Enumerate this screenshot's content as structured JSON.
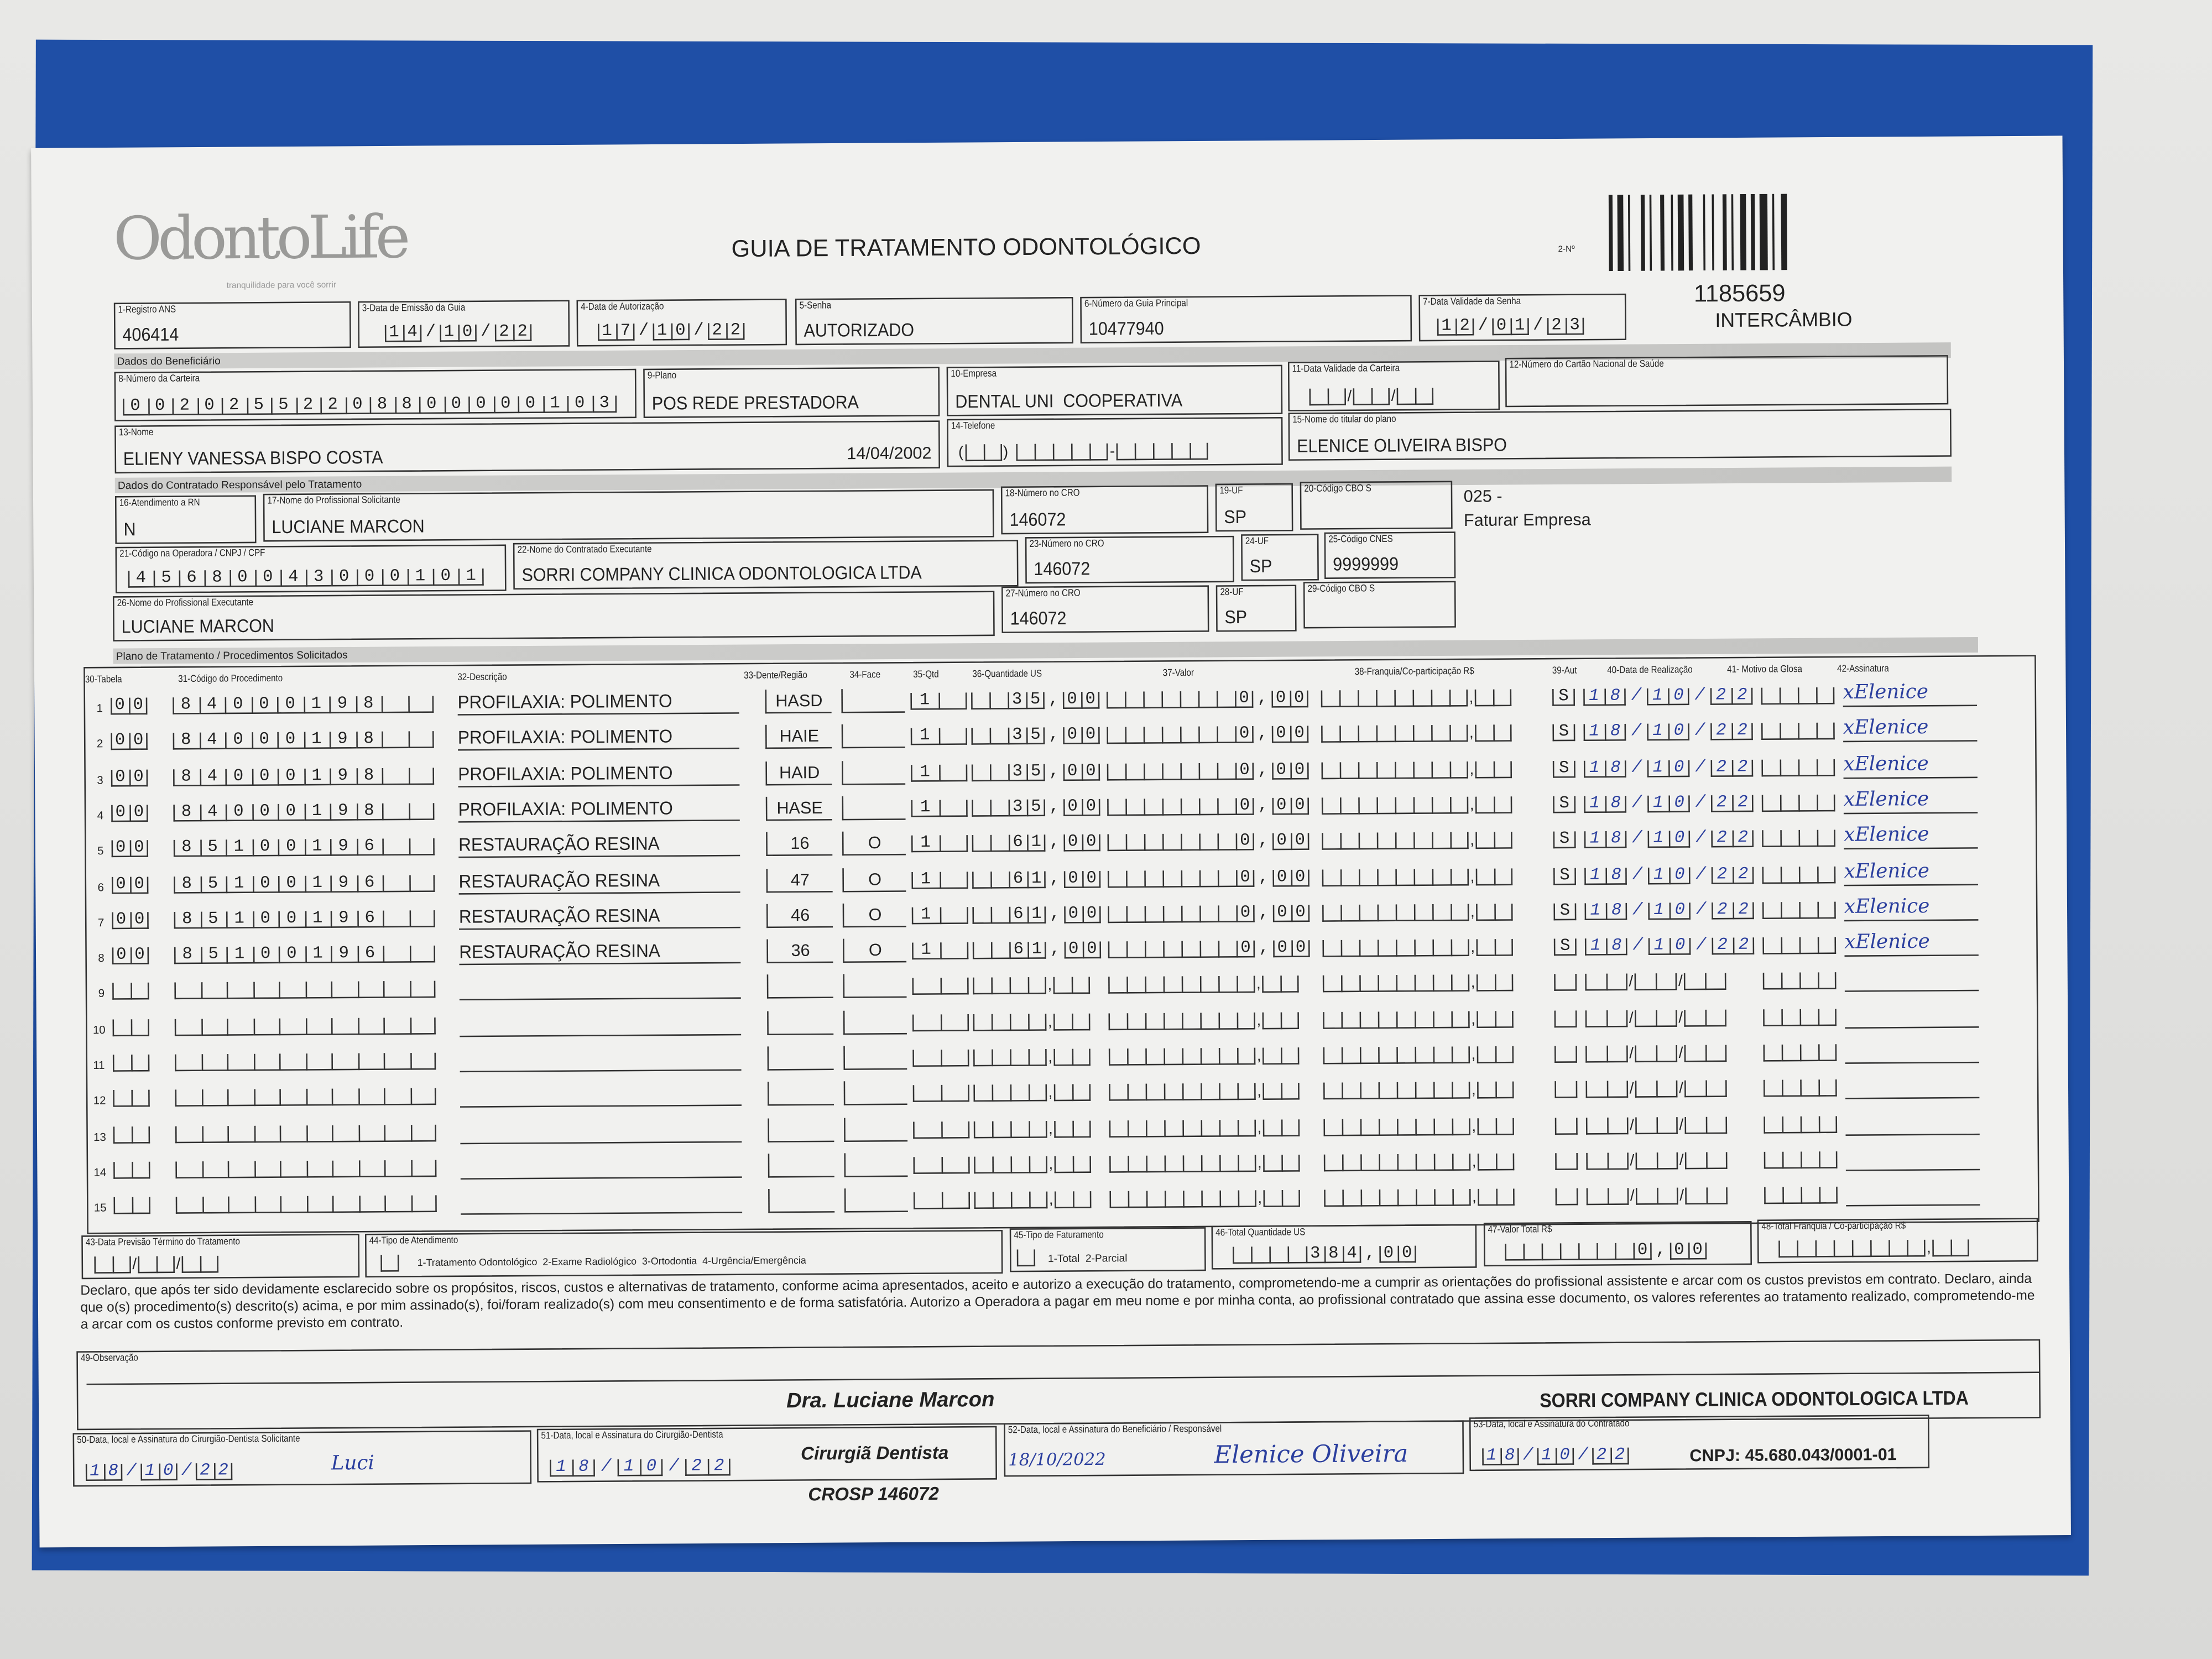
{
  "header": {
    "logo_text": "OdontoLife",
    "logo_tagline": "tranquilidade para você sorrir",
    "title": "GUIA DE TRATAMENTO ODONTOLÓGICO",
    "guia_number_label": "2-Nº",
    "guia_number": "1185659",
    "guia_type": "INTERCÂMBIO"
  },
  "fields": {
    "registro_ans": {
      "label": "1-Registro ANS",
      "value": "406414"
    },
    "data_emissao": {
      "label": "3-Data de Emissão da Guia",
      "value": "14/10/22"
    },
    "data_autorizacao": {
      "label": "4-Data de Autorização",
      "value": "17/10/22"
    },
    "senha": {
      "label": "5-Senha",
      "value": "AUTORIZADO"
    },
    "guia_principal": {
      "label": "6-Número da Guia Principal",
      "value": "10477940"
    },
    "validade_senha": {
      "label": "7-Data Validade da Senha",
      "value": "12/01/23"
    },
    "section_beneficiario": "Dados do Beneficiário",
    "carteira": {
      "label": "8-Número da Carteira",
      "value": "00202552208800000103"
    },
    "plano": {
      "label": "9-Plano",
      "value": "POS REDE PRESTADORA"
    },
    "empresa": {
      "label": "10-Empresa",
      "value": "DENTAL UNI  COOPERATIVA"
    },
    "validade_carteira": {
      "label": "11-Data Validade da Carteira",
      "value": ""
    },
    "cartao_nacional": {
      "label": "12-Número do Cartão Nacional de Saúde",
      "value": ""
    },
    "nome": {
      "label": "13-Nome",
      "value": "ELIENY VANESSA BISPO COSTA",
      "birth_date": "14/04/2002"
    },
    "telefone": {
      "label": "14-Telefone",
      "value": ""
    },
    "titular": {
      "label": "15-Nome do titular do plano",
      "value": "ELENICE OLIVEIRA BISPO"
    },
    "section_contratado": "Dados do Contratado Responsável pelo Tratamento",
    "atendimento_rn": {
      "label": "16-Atendimento a RN",
      "value": "N"
    },
    "profissional_solicitante": {
      "label": "17-Nome do Profissional Solicitante",
      "value": "LUCIANE MARCON"
    },
    "cro_18": {
      "label": "18-Número no CRO",
      "value": "146072"
    },
    "uf_19": {
      "label": "19-UF",
      "value": "SP"
    },
    "cbo_20": {
      "label": "20-Código CBO S",
      "value": ""
    },
    "billing_note_code": "025 -",
    "billing_note": "Faturar Empresa",
    "codigo_operadora": {
      "label": "21-Código na Operadora / CNPJ / CPF",
      "value": "45680043000101"
    },
    "contratado_executante": {
      "label": "22-Nome do Contratado Executante",
      "value": "SORRI COMPANY CLINICA ODONTOLOGICA LTDA"
    },
    "cro_23": {
      "label": "23-Número no CRO",
      "value": "146072"
    },
    "uf_24": {
      "label": "24-UF",
      "value": "SP"
    },
    "cnes": {
      "label": "25-Código CNES",
      "value": "9999999"
    },
    "profissional_executante": {
      "label": "26-Nome do Profissional Executante",
      "value": "LUCIANE MARCON"
    },
    "cro_27": {
      "label": "27-Número no CRO",
      "value": "146072"
    },
    "uf_28": {
      "label": "28-UF",
      "value": "SP"
    },
    "cbo_29": {
      "label": "29-Código CBO S",
      "value": ""
    }
  },
  "procedures": {
    "section_title": "Plano de Tratamento / Procedimentos Solicitados",
    "columns": [
      "30-Tabela",
      "31-Código do Procedimento",
      "32-Descrição",
      "33-Dente/Região",
      "34-Face",
      "35-Qtd",
      "36-Quantidade US",
      "37-Valor",
      "38-Franquia/Co-participação R$",
      "39-Aut",
      "40-Data de Realização",
      "41- Motivo da Glosa",
      "42-Assinatura"
    ],
    "rows": [
      {
        "n": "1",
        "tabela": "00",
        "codigo": "84000198",
        "descricao": "PROFILAXIA: POLIMENTO",
        "dente": "HASD",
        "face": "",
        "qtd": "1",
        "qtd_us": "35,00",
        "valor": "0,00",
        "aut": "S",
        "data": "18/10/22",
        "assinatura": "xElenice"
      },
      {
        "n": "2",
        "tabela": "00",
        "codigo": "84000198",
        "descricao": "PROFILAXIA: POLIMENTO",
        "dente": "HAIE",
        "face": "",
        "qtd": "1",
        "qtd_us": "35,00",
        "valor": "0,00",
        "aut": "S",
        "data": "18/10/22",
        "assinatura": "xElenice"
      },
      {
        "n": "3",
        "tabela": "00",
        "codigo": "84000198",
        "descricao": "PROFILAXIA: POLIMENTO",
        "dente": "HAID",
        "face": "",
        "qtd": "1",
        "qtd_us": "35,00",
        "valor": "0,00",
        "aut": "S",
        "data": "18/10/22",
        "assinatura": "xElenice"
      },
      {
        "n": "4",
        "tabela": "00",
        "codigo": "84000198",
        "descricao": "PROFILAXIA: POLIMENTO",
        "dente": "HASE",
        "face": "",
        "qtd": "1",
        "qtd_us": "35,00",
        "valor": "0,00",
        "aut": "S",
        "data": "18/10/22",
        "assinatura": "xElenice"
      },
      {
        "n": "5",
        "tabela": "00",
        "codigo": "85100196",
        "descricao": "RESTAURAÇÃO RESINA",
        "dente": "16",
        "face": "O",
        "qtd": "1",
        "qtd_us": "61,00",
        "valor": "0,00",
        "aut": "S",
        "data": "18/10/22",
        "assinatura": "xElenice"
      },
      {
        "n": "6",
        "tabela": "00",
        "codigo": "85100196",
        "descricao": "RESTAURAÇÃO RESINA",
        "dente": "47",
        "face": "O",
        "qtd": "1",
        "qtd_us": "61,00",
        "valor": "0,00",
        "aut": "S",
        "data": "18/10/22",
        "assinatura": "xElenice"
      },
      {
        "n": "7",
        "tabela": "00",
        "codigo": "85100196",
        "descricao": "RESTAURAÇÃO RESINA",
        "dente": "46",
        "face": "O",
        "qtd": "1",
        "qtd_us": "61,00",
        "valor": "0,00",
        "aut": "S",
        "data": "18/10/22",
        "assinatura": "xElenice"
      },
      {
        "n": "8",
        "tabela": "00",
        "codigo": "85100196",
        "descricao": "RESTAURAÇÃO RESINA",
        "dente": "36",
        "face": "O",
        "qtd": "1",
        "qtd_us": "61,00",
        "valor": "0,00",
        "aut": "S",
        "data": "18/10/22",
        "assinatura": "xElenice"
      },
      {
        "n": "9"
      },
      {
        "n": "10"
      },
      {
        "n": "11"
      },
      {
        "n": "12"
      },
      {
        "n": "13"
      },
      {
        "n": "14"
      },
      {
        "n": "15"
      }
    ]
  },
  "totals": {
    "previsao_termino": {
      "label": "43-Data Previsão Término do Tratamento",
      "value": ""
    },
    "tipo_atendimento": {
      "label": "44-Tipo de Atendimento",
      "options": "1-Tratamento Odontológico  2-Exame Radiológico  3-Ortodontia  4-Urgência/Emergência",
      "value": ""
    },
    "tipo_faturamento": {
      "label": "45-Tipo de Faturamento",
      "options": "1-Total  2-Parcial",
      "value": ""
    },
    "total_us": {
      "label": "46-Total Quantidade US",
      "value": "384,00"
    },
    "valor_total": {
      "label": "47-Valor Total R$",
      "value": "0,00"
    },
    "total_franquia": {
      "label": "48-Total Franquia / Co-participação R$",
      "value": ""
    }
  },
  "declaration": "Declaro, que após ter sido devidamente esclarecido sobre os propósitos, riscos, custos e alternativas de tratamento, conforme acima apresentados, aceito e autorizo a execução do tratamento, comprometendo-me a cumprir as orientações do profissional assistente e arcar com os custos previstos em contrato. Declaro, ainda que o(s) procedimento(s) descrito(s) acima, e por mim assinado(s), foi/foram realizado(s) com meu consentimento e de forma satisfatória. Autorizo a Operadora a pagar em meu nome e por minha conta, ao profissional contratado que assina esse documento, os valores referentes ao tratamento realizado, comprometendo-me a arcar com os custos conforme previsto em contrato.",
  "observacao": {
    "label": "49-Observação",
    "value": ""
  },
  "signatures": {
    "solicitante": {
      "label": "50-Data, local e Assinatura do Cirurgião-Dentista Solicitante",
      "date": "18/10/22",
      "sign": "Luci"
    },
    "executante": {
      "label": "51-Data, local e Assinatura do Cirurgião-Dentista",
      "date": "18/10/22"
    },
    "beneficiario": {
      "label": "52-Data, local e Assinatura do Beneficiário / Responsável",
      "date": "18/10/2022",
      "sign": "Elenice Oliveira"
    },
    "contratado": {
      "label": "53-Data, local e Assinatura do Contratado",
      "date": "18/10/22"
    }
  },
  "stamps": {
    "dentist_name": "Dra. Luciane Marcon",
    "dentist_title": "Cirurgiã Dentista",
    "dentist_cro": "CROSP 146072",
    "clinic_name": "SORRI COMPANY CLINICA ODONTOLOGICA LTDA",
    "clinic_cnpj": "CNPJ: 45.680.043/0001-01"
  },
  "colors": {
    "board": "#1f4fa6",
    "paper": "#f1f1ef",
    "ink": "#2b3f9e"
  }
}
